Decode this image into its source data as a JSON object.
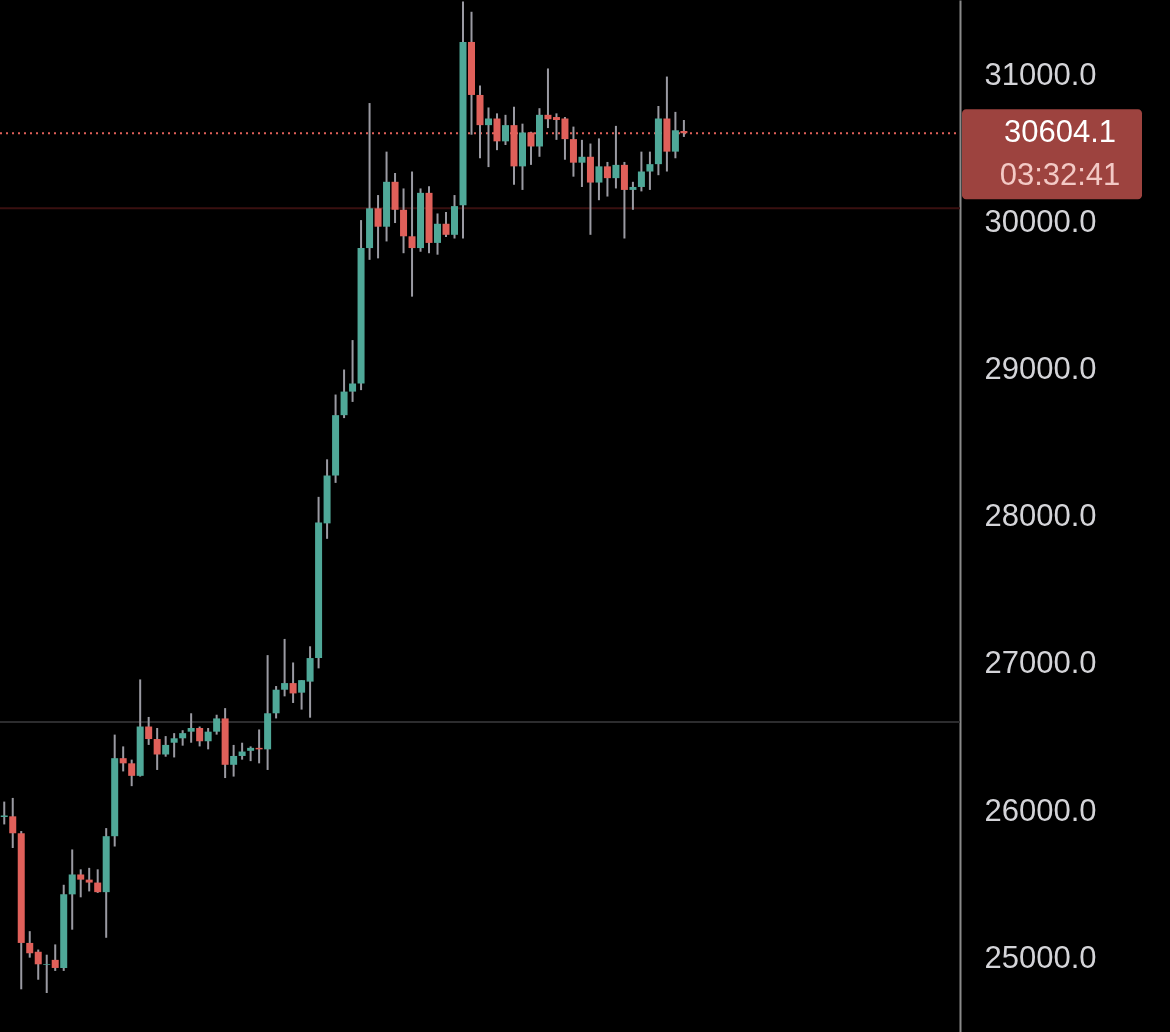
{
  "chart_data": {
    "type": "candlestick",
    "categories": [
      null,
      null,
      null,
      null,
      null,
      null,
      null,
      null,
      null,
      null,
      null,
      null,
      null,
      null,
      null,
      null,
      null,
      null,
      null,
      null,
      null,
      null,
      null,
      null,
      null,
      null,
      null,
      null,
      null,
      null,
      null,
      null,
      null,
      null,
      null,
      null,
      null,
      null,
      null,
      null,
      null,
      null,
      null,
      null,
      null,
      null,
      null,
      null,
      null,
      null,
      null,
      null,
      null,
      null,
      null,
      null,
      null,
      null,
      null,
      null,
      null,
      null,
      null,
      null,
      null,
      null,
      null,
      null,
      null,
      null,
      null,
      null,
      null,
      null,
      null,
      null,
      null,
      null,
      null,
      null,
      null,
      null,
      null,
      null,
      null,
      null,
      null,
      null,
      null,
      null,
      null,
      null,
      null,
      null,
      null,
      null,
      null,
      null,
      null,
      null,
      null,
      null,
      null,
      null,
      null,
      null,
      null,
      null,
      null,
      null,
      null,
      null,
      null
    ],
    "ohlc": [
      [
        25960,
        26065,
        25910,
        25970
      ],
      [
        25965,
        26090,
        25750,
        25850
      ],
      [
        25850,
        25865,
        24790,
        25105
      ],
      [
        25105,
        25185,
        25005,
        25035
      ],
      [
        25045,
        25060,
        24855,
        24960
      ],
      [
        24955,
        25025,
        24765,
        24960
      ],
      [
        24990,
        25095,
        24915,
        24935
      ],
      [
        24935,
        25500,
        24915,
        25435
      ],
      [
        25435,
        25740,
        25195,
        25570
      ],
      [
        25570,
        25605,
        25415,
        25535
      ],
      [
        25535,
        25615,
        25455,
        25515
      ],
      [
        25515,
        25605,
        25445,
        25450
      ],
      [
        25450,
        25885,
        25140,
        25830
      ],
      [
        25830,
        26520,
        25760,
        26360
      ],
      [
        26360,
        26440,
        26270,
        26325
      ],
      [
        26325,
        26350,
        26170,
        26240
      ],
      [
        26240,
        26895,
        26235,
        26575
      ],
      [
        26575,
        26640,
        26450,
        26490
      ],
      [
        26490,
        26565,
        26280,
        26385
      ],
      [
        26385,
        26510,
        26370,
        26450
      ],
      [
        26465,
        26530,
        26365,
        26495
      ],
      [
        26495,
        26550,
        26445,
        26530
      ],
      [
        26540,
        26665,
        26465,
        26565
      ],
      [
        26565,
        26575,
        26440,
        26475
      ],
      [
        26475,
        26565,
        26420,
        26540
      ],
      [
        26540,
        26655,
        26520,
        26630
      ],
      [
        26630,
        26700,
        26225,
        26315
      ],
      [
        26315,
        26450,
        26235,
        26375
      ],
      [
        26375,
        26465,
        26350,
        26405
      ],
      [
        26410,
        26440,
        26340,
        26430
      ],
      [
        26430,
        26555,
        26325,
        26420
      ],
      [
        26420,
        27060,
        26280,
        26665
      ],
      [
        26665,
        26850,
        26630,
        26825
      ],
      [
        26825,
        27170,
        26780,
        26870
      ],
      [
        26870,
        27010,
        26735,
        26800
      ],
      [
        26805,
        26890,
        26690,
        26890
      ],
      [
        26880,
        27120,
        26635,
        27040
      ],
      [
        27040,
        28135,
        26970,
        27960
      ],
      [
        27955,
        28390,
        27850,
        28280
      ],
      [
        28280,
        28830,
        28230,
        28690
      ],
      [
        28690,
        29000,
        28670,
        28850
      ],
      [
        28850,
        29200,
        28780,
        28905
      ],
      [
        28905,
        30015,
        28860,
        29825
      ],
      [
        29825,
        30810,
        29745,
        30095
      ],
      [
        30095,
        30185,
        29755,
        29970
      ],
      [
        29970,
        30480,
        29870,
        30275
      ],
      [
        30275,
        30335,
        29995,
        30085
      ],
      [
        30085,
        30230,
        29790,
        29905
      ],
      [
        29905,
        30345,
        29495,
        29825
      ],
      [
        29825,
        30230,
        29800,
        30200
      ],
      [
        30200,
        30245,
        29790,
        29860
      ],
      [
        29860,
        30060,
        29780,
        29990
      ],
      [
        29990,
        30070,
        29900,
        29915
      ],
      [
        29915,
        30185,
        29890,
        30110
      ],
      [
        30115,
        31500,
        29890,
        31225
      ],
      [
        31225,
        31430,
        30595,
        30865
      ],
      [
        30865,
        30930,
        30435,
        30660
      ],
      [
        30660,
        30780,
        30375,
        30705
      ],
      [
        30705,
        30740,
        30490,
        30550
      ],
      [
        30550,
        30730,
        30525,
        30660
      ],
      [
        30660,
        30785,
        30255,
        30380
      ],
      [
        30380,
        30670,
        30220,
        30610
      ],
      [
        30610,
        30615,
        30390,
        30515
      ],
      [
        30515,
        30775,
        30445,
        30730
      ],
      [
        30730,
        31045,
        30640,
        30700
      ],
      [
        30715,
        30740,
        30560,
        30695
      ],
      [
        30705,
        30715,
        30425,
        30565
      ],
      [
        30565,
        30650,
        30310,
        30405
      ],
      [
        30405,
        30560,
        30240,
        30445
      ],
      [
        30445,
        30535,
        29915,
        30270
      ],
      [
        30270,
        30570,
        30150,
        30380
      ],
      [
        30380,
        30410,
        30175,
        30300
      ],
      [
        30300,
        30655,
        30230,
        30390
      ],
      [
        30390,
        30410,
        29890,
        30220
      ],
      [
        30220,
        30275,
        30085,
        30240
      ],
      [
        30240,
        30480,
        30210,
        30345
      ],
      [
        30345,
        30480,
        30220,
        30395
      ],
      [
        30395,
        30790,
        30320,
        30705
      ],
      [
        30705,
        30990,
        30345,
        30480
      ],
      [
        30480,
        30750,
        30435,
        30625
      ],
      [
        30620,
        30695,
        30580,
        30605
      ],
      null,
      null,
      null,
      null,
      null,
      null,
      null,
      null,
      null,
      null,
      null,
      null,
      null,
      null,
      null,
      null,
      null,
      null,
      null,
      null,
      null,
      null,
      null,
      null,
      null,
      null,
      null,
      null,
      null,
      null,
      null,
      null
    ],
    "colors": [
      "#4fa898",
      "#e0605a",
      "#e0605a",
      "#e0605a",
      "#e0605a",
      "#4fa898",
      "#e0605a",
      "#4fa898",
      "#4fa898",
      "#e0605a",
      "#e0605a",
      "#e0605a",
      "#4fa898",
      "#4fa898",
      "#e0605a",
      "#e0605a",
      "#4fa898",
      "#e0605a",
      "#e0605a",
      "#4fa898",
      "#4fa898",
      "#4fa898",
      "#4fa898",
      "#e0605a",
      "#4fa898",
      "#4fa898",
      "#e0605a",
      "#4fa898",
      "#4fa898",
      "#4fa898",
      "#e0605a",
      "#4fa898",
      "#4fa898",
      "#4fa898",
      "#e0605a",
      "#4fa898",
      "#4fa898",
      "#4fa898",
      "#4fa898",
      "#4fa898",
      "#4fa898",
      "#4fa898",
      "#4fa898",
      "#4fa898",
      "#e0605a",
      "#4fa898",
      "#e0605a",
      "#e0605a",
      "#e0605a",
      "#4fa898",
      "#e0605a",
      "#4fa898",
      "#e0605a",
      "#4fa898",
      "#4fa898",
      "#e0605a",
      "#e0605a",
      "#4fa898",
      "#e0605a",
      "#4fa898",
      "#e0605a",
      "#4fa898",
      "#e0605a",
      "#4fa898",
      "#e0605a",
      "#e0605a",
      "#e0605a",
      "#e0605a",
      "#4fa898",
      "#e0605a",
      "#4fa898",
      "#e0605a",
      "#4fa898",
      "#e0605a",
      "#4fa898",
      "#4fa898",
      "#4fa898",
      "#4fa898",
      "#e0605a",
      "#4fa898",
      "#e0605a",
      null,
      null,
      null,
      null,
      null,
      null,
      null,
      null,
      null,
      null,
      null,
      null,
      null,
      null,
      null,
      null,
      null,
      null,
      null,
      null,
      null,
      null,
      null,
      null,
      null,
      null,
      null,
      null,
      null,
      null,
      null,
      null
    ],
    "ylim": [
      24500,
      31510
    ],
    "yticks": [
      {
        "value": 25000,
        "label": "25000.0"
      },
      {
        "value": 26000,
        "label": "26000.0"
      },
      {
        "value": 27000,
        "label": "27000.0"
      },
      {
        "value": 28000,
        "label": "28000.0"
      },
      {
        "value": 29000,
        "label": "29000.0"
      },
      {
        "value": 30000,
        "label": "30000.0"
      },
      {
        "value": 31000,
        "label": "31000.0"
      }
    ],
    "tick_labels": "y",
    "grid": false,
    "ref_lines": [
      {
        "axis": "y",
        "value": 30604.1,
        "label": "30604.1",
        "color": "#e0605a",
        "line_style": "dotted"
      },
      {
        "axis": "y",
        "value": 30095,
        "color": "#3a1010",
        "line_style": "solid"
      },
      {
        "axis": "y",
        "value": 26605,
        "color": "#2c2c2e",
        "line_style": "solid"
      }
    ],
    "annotations": [
      "03:32:41"
    ]
  }
}
